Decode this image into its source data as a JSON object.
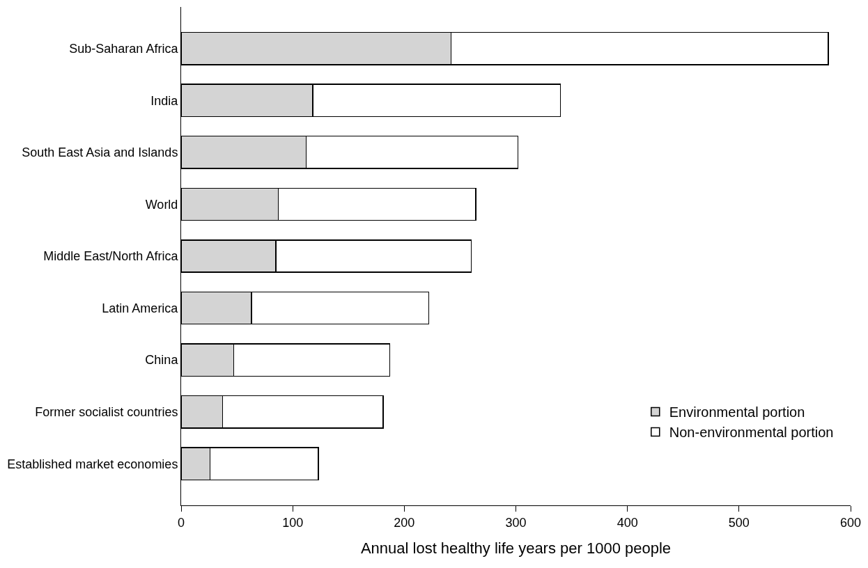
{
  "chart_data": {
    "type": "bar",
    "orientation": "horizontal",
    "stacked": true,
    "categories": [
      "Sub-Saharan Africa",
      "India",
      "South East Asia and Islands",
      "World",
      "Middle East/North Africa",
      "Latin America",
      "China",
      "Former socialist countries",
      "Established market economies"
    ],
    "series": [
      {
        "name": "Environmental portion",
        "color": "#d4d4d4",
        "values": [
          242,
          118,
          112,
          87,
          85,
          63,
          47,
          37,
          26
        ]
      },
      {
        "name": "Non-environmental portion",
        "color": "#ffffff",
        "values": [
          338,
          222,
          190,
          177,
          175,
          159,
          140,
          144,
          97
        ]
      }
    ],
    "xlabel": "Annual lost healthy life years per 1000 people",
    "xlim": [
      0,
      600
    ],
    "xticks": [
      0,
      100,
      200,
      300,
      400,
      500,
      600
    ],
    "legend": "bottom right"
  }
}
